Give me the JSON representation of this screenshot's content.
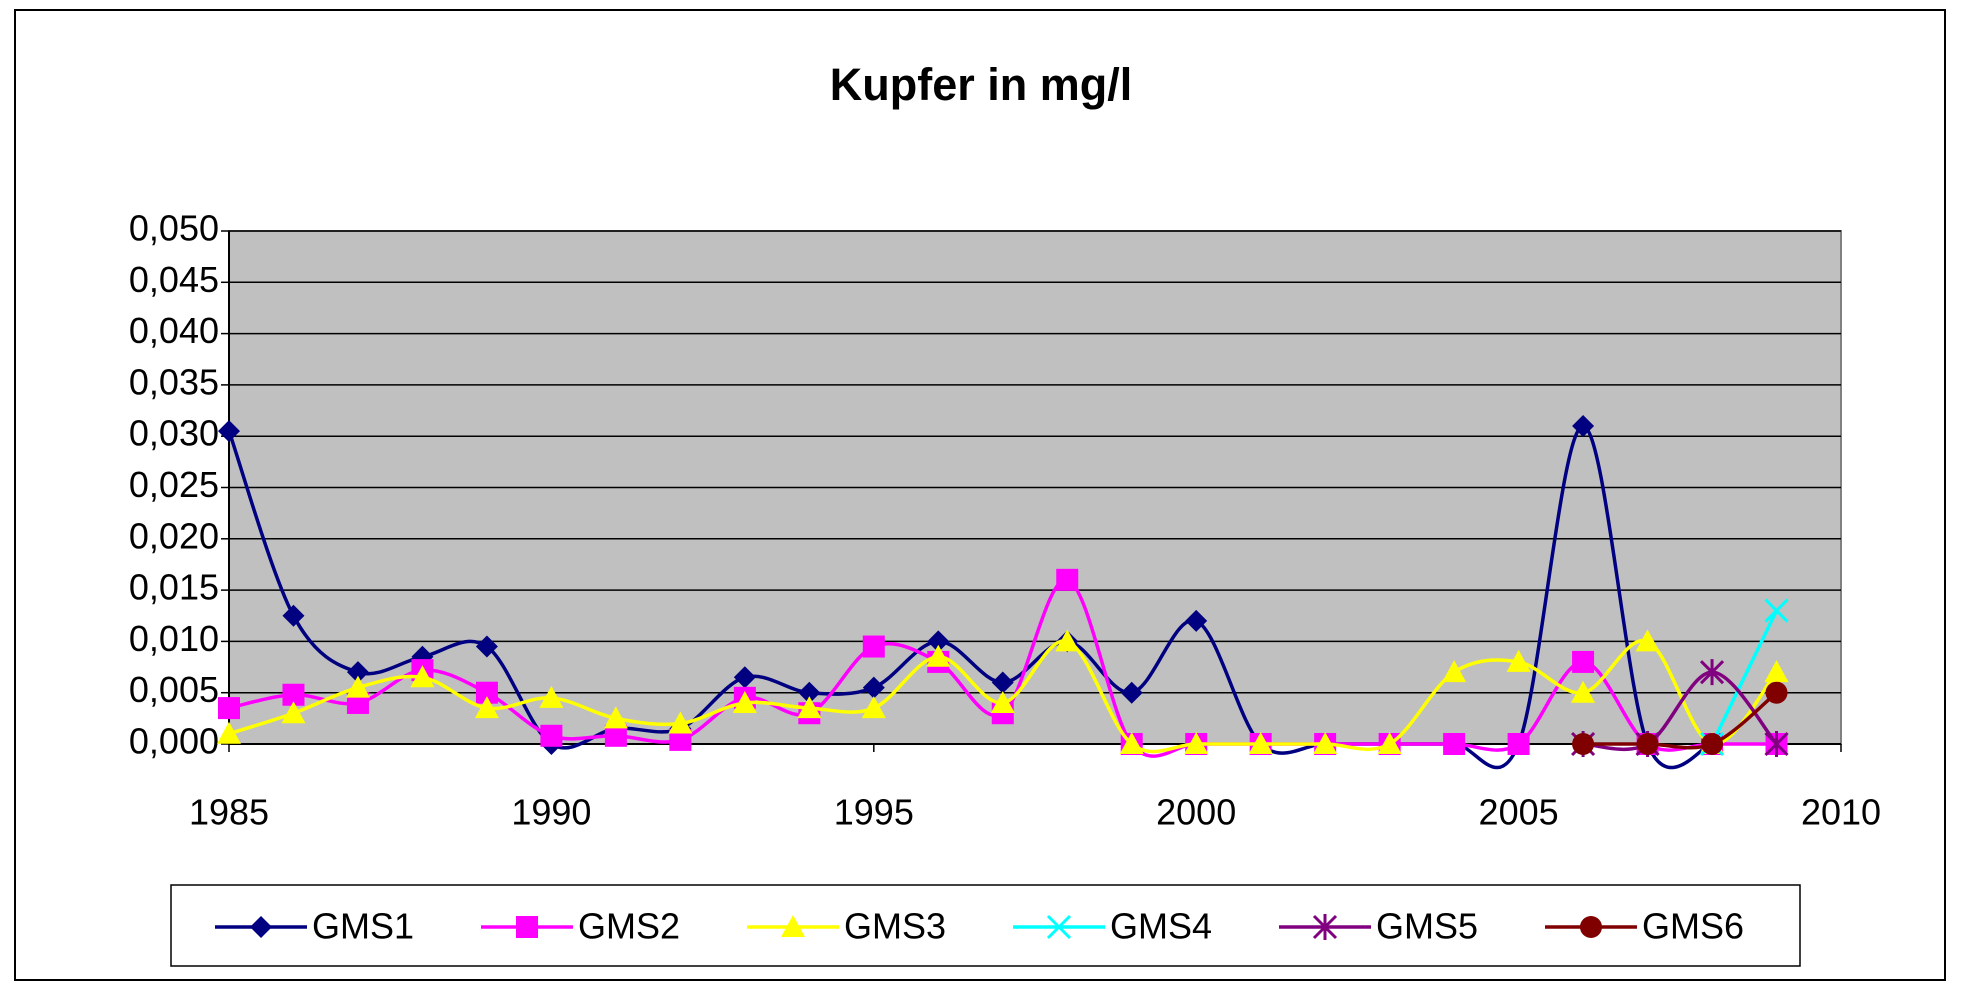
{
  "chart_data": {
    "type": "line",
    "title": "Kupfer in mg/l",
    "x": [
      1985,
      1986,
      1987,
      1988,
      1989,
      1990,
      1991,
      1992,
      1993,
      1994,
      1995,
      1996,
      1997,
      1998,
      1999,
      2000,
      2001,
      2002,
      2003,
      2004,
      2005,
      2006,
      2007,
      2008,
      2009
    ],
    "series": [
      {
        "name": "GMS1",
        "color": "#000080",
        "marker": "diamond",
        "values": [
          0.0305,
          0.0125,
          0.007,
          0.0085,
          0.0095,
          0.0,
          0.0015,
          0.0015,
          0.0065,
          0.005,
          0.0055,
          0.01,
          0.006,
          0.01,
          0.005,
          0.012,
          0,
          0,
          0,
          0,
          0,
          0.031,
          0,
          0,
          null
        ]
      },
      {
        "name": "GMS2",
        "color": "#ff00ff",
        "marker": "square",
        "values": [
          0.0035,
          0.0048,
          0.004,
          0.0072,
          0.005,
          0.0008,
          0.0008,
          0.0004,
          0.0045,
          0.003,
          0.0095,
          0.008,
          0.003,
          0.016,
          0,
          0,
          0,
          0,
          0,
          0,
          0,
          0.008,
          0,
          0,
          0
        ]
      },
      {
        "name": "GMS3",
        "color": "#ffff00",
        "marker": "triangle",
        "values": [
          0.001,
          0.003,
          0.0055,
          0.0065,
          0.0035,
          0.0045,
          0.0025,
          0.002,
          0.004,
          0.0035,
          0.0035,
          0.0085,
          0.004,
          0.01,
          0,
          0,
          0,
          0,
          0,
          0.007,
          0.008,
          0.005,
          0.01,
          0,
          0.007
        ]
      },
      {
        "name": "GMS4",
        "color": "#00ffff",
        "marker": "x",
        "values": [
          null,
          null,
          null,
          null,
          null,
          null,
          null,
          null,
          null,
          null,
          null,
          null,
          null,
          null,
          null,
          null,
          null,
          null,
          null,
          null,
          null,
          null,
          null,
          0,
          0.013
        ]
      },
      {
        "name": "GMS5",
        "color": "#800080",
        "marker": "star",
        "values": [
          null,
          null,
          null,
          null,
          null,
          null,
          null,
          null,
          null,
          null,
          null,
          null,
          null,
          null,
          null,
          null,
          null,
          null,
          null,
          null,
          null,
          0,
          0,
          0.007,
          0
        ]
      },
      {
        "name": "GMS6",
        "color": "#800000",
        "marker": "circle",
        "values": [
          null,
          null,
          null,
          null,
          null,
          null,
          null,
          null,
          null,
          null,
          null,
          null,
          null,
          null,
          null,
          null,
          null,
          null,
          null,
          null,
          null,
          0,
          0,
          0,
          0.005
        ]
      }
    ],
    "xlim": [
      1985,
      2010
    ],
    "xticks": [
      1985,
      1990,
      1995,
      2000,
      2005,
      2010
    ],
    "ylim": [
      0,
      0.05
    ],
    "yticks": [
      {
        "value": 0,
        "label": "0,000"
      },
      {
        "value": 0.005,
        "label": "0,005"
      },
      {
        "value": 0.01,
        "label": "0,010"
      },
      {
        "value": 0.015,
        "label": "0,015"
      },
      {
        "value": 0.02,
        "label": "0,020"
      },
      {
        "value": 0.025,
        "label": "0,025"
      },
      {
        "value": 0.03,
        "label": "0,030"
      },
      {
        "value": 0.035,
        "label": "0,035"
      },
      {
        "value": 0.04,
        "label": "0,040"
      },
      {
        "value": 0.045,
        "label": "0,045"
      },
      {
        "value": 0.05,
        "label": "0,050"
      }
    ],
    "grid": true,
    "smooth": true,
    "plot_background": "#c0c0c0",
    "legend": "bottom"
  }
}
